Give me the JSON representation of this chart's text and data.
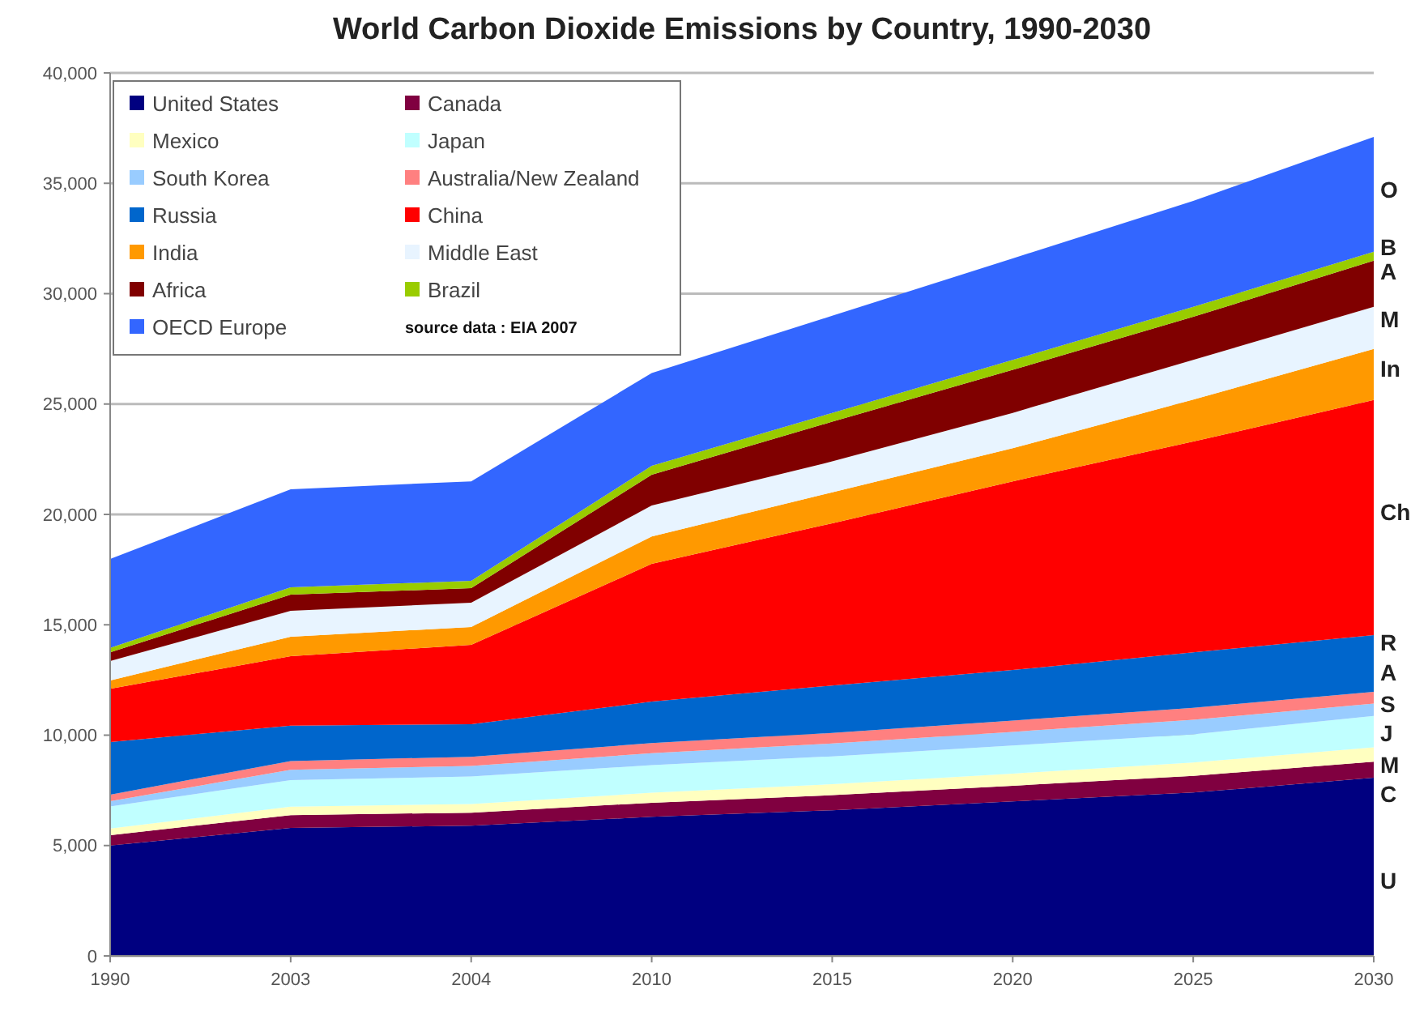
{
  "chart_data": {
    "type": "area",
    "stacked": true,
    "title": "World Carbon Dioxide Emissions by Country, 1990-2030",
    "categories": [
      "1990",
      "2003",
      "2004",
      "2010",
      "2015",
      "2020",
      "2025",
      "2030"
    ],
    "series": [
      {
        "name": "United States",
        "color": "#000080",
        "values": [
          5000,
          5800,
          5900,
          6300,
          6600,
          7000,
          7400,
          8070
        ]
      },
      {
        "name": "Canada",
        "color": "#800040",
        "values": [
          470,
          580,
          590,
          640,
          680,
          710,
          760,
          730
        ]
      },
      {
        "name": "Mexico",
        "color": "#ffffc0",
        "values": [
          300,
          380,
          390,
          450,
          500,
          550,
          600,
          650
        ]
      },
      {
        "name": "Japan",
        "color": "#c0ffff",
        "values": [
          1000,
          1200,
          1250,
          1250,
          1260,
          1270,
          1280,
          1420
        ]
      },
      {
        "name": "South Korea",
        "color": "#99ccff",
        "values": [
          240,
          470,
          480,
          540,
          580,
          620,
          660,
          560
        ]
      },
      {
        "name": "Australia/New Zealand",
        "color": "#ff8080",
        "values": [
          290,
          400,
          410,
          460,
          480,
          510,
          540,
          530
        ]
      },
      {
        "name": "Russia",
        "color": "#0066cc",
        "values": [
          2390,
          1600,
          1480,
          1880,
          2150,
          2290,
          2510,
          2570
        ]
      },
      {
        "name": "China",
        "color": "#ff0000",
        "values": [
          2410,
          3150,
          3590,
          6240,
          7350,
          8550,
          9550,
          10650
        ]
      },
      {
        "name": "India",
        "color": "#ff9900",
        "values": [
          380,
          880,
          810,
          1240,
          1400,
          1500,
          1900,
          2320
        ]
      },
      {
        "name": "Middle East",
        "color": "#e8f4ff",
        "values": [
          880,
          1170,
          1100,
          1400,
          1400,
          1600,
          1800,
          1900
        ]
      },
      {
        "name": "Africa",
        "color": "#800000",
        "values": [
          390,
          740,
          660,
          1400,
          1800,
          1950,
          1950,
          2100
        ]
      },
      {
        "name": "Brazil",
        "color": "#99cc00",
        "values": [
          200,
          330,
          330,
          400,
          400,
          450,
          450,
          400
        ]
      },
      {
        "name": "OECD Europe",
        "color": "#3366ff",
        "values": [
          4030,
          4440,
          4510,
          4200,
          4400,
          4600,
          4800,
          5200
        ]
      }
    ],
    "ylim": [
      0,
      40000
    ],
    "yticks": [
      0,
      {
        "value": 5000,
        "label": "5,000"
      },
      {
        "value": 10000,
        "label": "10,000"
      },
      {
        "value": 15000,
        "label": "15,000"
      },
      {
        "value": 20000,
        "label": "20,000"
      },
      {
        "value": 25000,
        "label": "25,000"
      },
      {
        "value": 30000,
        "label": "30,000"
      },
      {
        "value": 35000,
        "label": "35,000"
      },
      {
        "value": 40000,
        "label": "40,000"
      }
    ],
    "grid": "y",
    "legend": "top left",
    "annotations": [
      "source data : EIA 2007",
      {
        "text": "O",
        "x": "2030",
        "y": 34700
      },
      {
        "text": "B",
        "x": "2030",
        "y": 32100
      },
      {
        "text": "A",
        "x": "2030",
        "y": 31000
      },
      {
        "text": "M",
        "x": "2030",
        "y": 28850
      },
      {
        "text": "In",
        "x": "2030",
        "y": 26600
      },
      {
        "text": "Ch",
        "x": "2030",
        "y": 20100
      },
      {
        "text": "R",
        "x": "2030",
        "y": 14200
      },
      {
        "text": "A",
        "x": "2030",
        "y": 12850
      },
      {
        "text": "S",
        "x": "2030",
        "y": 11400
      },
      {
        "text": "J",
        "x": "2030",
        "y": 10100
      },
      {
        "text": "M",
        "x": "2030",
        "y": 8650
      },
      {
        "text": "C",
        "x": "2030",
        "y": 7350
      },
      {
        "text": "U",
        "x": "2030",
        "y": 3400
      }
    ]
  }
}
